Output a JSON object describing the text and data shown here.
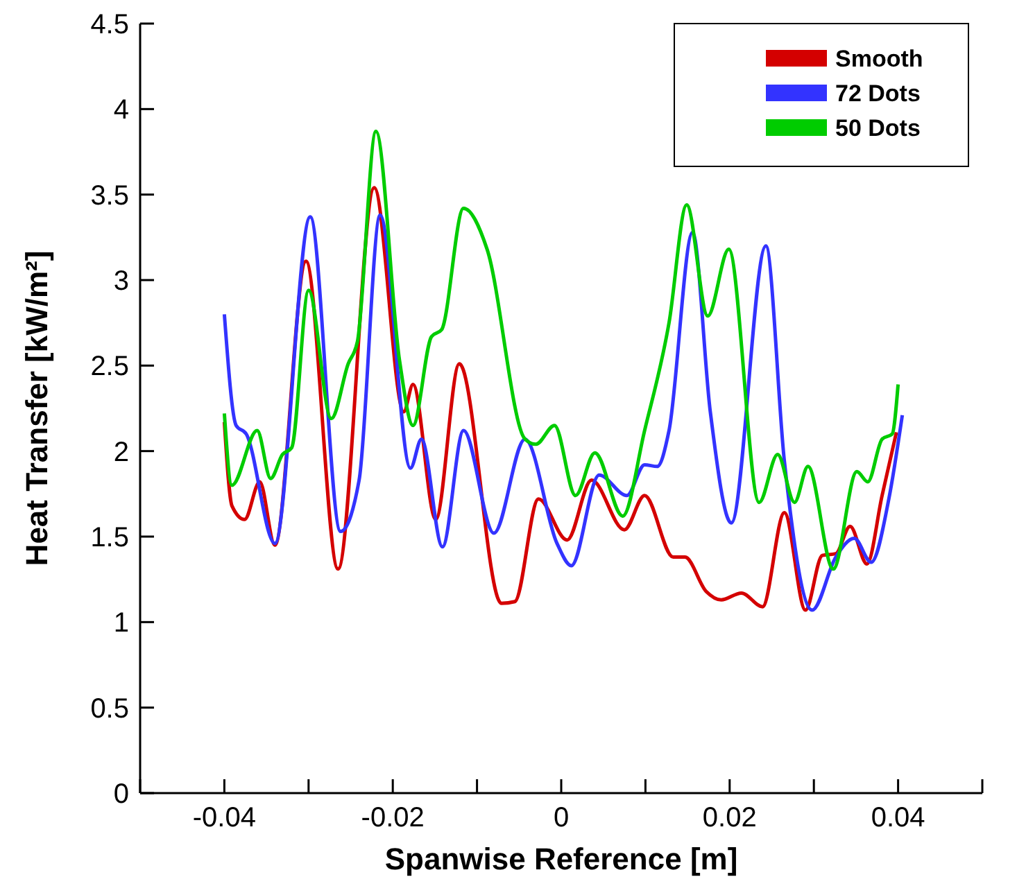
{
  "chart_data": {
    "type": "line",
    "xlabel": "Spanwise Reference [m]",
    "ylabel": "Heat Transfer [kW/m²]",
    "xlim": [
      -0.05,
      0.05
    ],
    "ylim": [
      0,
      4.5
    ],
    "xticks": [
      {
        "value": -0.05,
        "label": null
      },
      -0.04,
      {
        "value": -0.03,
        "label": null
      },
      -0.02,
      {
        "value": -0.01,
        "label": null
      },
      0,
      {
        "value": 0.01,
        "label": null
      },
      0.02,
      {
        "value": 0.03,
        "label": null
      },
      0.04,
      {
        "value": 0.05,
        "label": null
      }
    ],
    "yticks": [
      0,
      0.5,
      1,
      1.5,
      2,
      2.5,
      3,
      3.5,
      4,
      4.5
    ],
    "legend": "top right",
    "grid": false,
    "marker": "none",
    "line_style": "solid",
    "series": [
      {
        "name": "Smooth",
        "color": "#d40000",
        "x": [
          -0.04,
          -0.0391,
          -0.0376,
          -0.0358,
          -0.034,
          -0.0303,
          -0.0265,
          -0.0222,
          -0.0187,
          -0.0176,
          -0.0149,
          -0.0121,
          -0.0071,
          -0.0055,
          -0.0027,
          0.0007,
          0.0036,
          0.0075,
          0.0099,
          0.0133,
          0.0147,
          0.0172,
          0.019,
          0.0214,
          0.0239,
          0.0265,
          0.029,
          0.031,
          0.0326,
          0.0343,
          0.0363,
          0.0381,
          0.0398
        ],
        "values": [
          2.17,
          1.68,
          1.6,
          1.82,
          1.45,
          3.11,
          1.31,
          3.54,
          2.23,
          2.39,
          1.6,
          2.51,
          1.11,
          1.12,
          1.72,
          1.48,
          1.83,
          1.54,
          1.74,
          1.38,
          1.38,
          1.18,
          1.13,
          1.17,
          1.09,
          1.64,
          1.07,
          1.39,
          1.4,
          1.56,
          1.34,
          1.74,
          2.11
        ]
      },
      {
        "name": "72 Dots",
        "color": "#3333ff",
        "x": [
          -0.04,
          -0.0386,
          -0.0374,
          -0.034,
          -0.0298,
          -0.0262,
          -0.024,
          -0.0215,
          -0.0179,
          -0.0166,
          -0.0141,
          -0.0116,
          -0.008,
          -0.0043,
          -0.0005,
          0.0012,
          0.0045,
          0.0078,
          0.0099,
          0.0114,
          0.0128,
          0.0156,
          0.0177,
          0.0202,
          0.0243,
          0.0265,
          0.0298,
          0.0326,
          0.0348,
          0.0368,
          0.0389,
          0.0405
        ],
        "values": [
          2.8,
          2.15,
          2.1,
          1.46,
          3.37,
          1.53,
          1.83,
          3.38,
          1.9,
          2.07,
          1.44,
          2.12,
          1.52,
          2.07,
          1.46,
          1.33,
          1.86,
          1.74,
          1.92,
          1.91,
          2.12,
          3.28,
          2.23,
          1.58,
          3.2,
          1.94,
          1.07,
          1.38,
          1.49,
          1.35,
          1.72,
          2.21
        ]
      },
      {
        "name": "50 Dots",
        "color": "#00cc00",
        "x": [
          -0.04,
          -0.0391,
          -0.0361,
          -0.0345,
          -0.0331,
          -0.032,
          -0.03,
          -0.0273,
          -0.0253,
          -0.0242,
          -0.022,
          -0.0192,
          -0.0176,
          -0.0154,
          -0.0142,
          -0.0116,
          -0.0088,
          -0.0043,
          -0.003,
          -0.0008,
          0.0017,
          0.004,
          0.0073,
          0.0099,
          0.0128,
          0.0149,
          0.0174,
          0.0199,
          0.0235,
          0.0257,
          0.0277,
          0.0293,
          0.0323,
          0.0351,
          0.0364,
          0.0381,
          0.0393,
          0.04
        ],
        "values": [
          2.22,
          1.8,
          2.12,
          1.84,
          1.98,
          2.02,
          2.94,
          2.19,
          2.51,
          2.64,
          3.87,
          2.53,
          2.15,
          2.67,
          2.71,
          3.42,
          3.18,
          2.07,
          2.04,
          2.15,
          1.74,
          1.99,
          1.62,
          2.12,
          2.75,
          3.44,
          2.79,
          3.18,
          1.7,
          1.98,
          1.7,
          1.91,
          1.31,
          1.88,
          1.82,
          2.07,
          2.1,
          2.39
        ]
      }
    ]
  }
}
